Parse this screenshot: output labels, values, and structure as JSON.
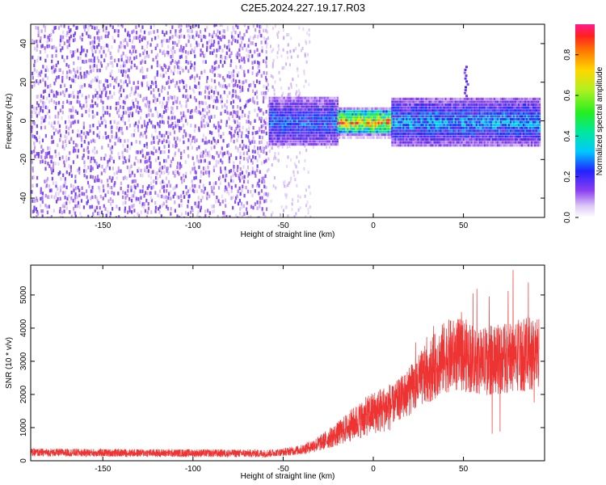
{
  "title": "C2E5.2024.227.19.17.R03",
  "chart_data": [
    {
      "type": "heatmap",
      "xlabel": "Height of straight line (km)",
      "ylabel": "Frequency (Hz)",
      "xlim": [
        -190,
        95
      ],
      "ylim": [
        -50,
        50
      ],
      "x_ticks": [
        -150,
        -100,
        -50,
        0,
        50
      ],
      "y_ticks": [
        -40,
        -20,
        0,
        20,
        40
      ],
      "colorbar": {
        "label": "Normalized spectral amplitude",
        "range": [
          0,
          0.95
        ],
        "ticks": [
          0.0,
          0.2,
          0.4,
          0.6,
          0.8
        ]
      },
      "regions": [
        {
          "x": [
            -190,
            -60
          ],
          "description_freq_band": [
            -50,
            50
          ],
          "level": 0.15
        },
        {
          "x": [
            -58,
            -20
          ],
          "description_freq_band": [
            -12,
            12
          ],
          "level": 0.3
        },
        {
          "x": [
            -20,
            10
          ],
          "description_freq_band": [
            -4,
            4
          ],
          "level": 0.85
        },
        {
          "x": [
            10,
            92
          ],
          "description_freq_band": [
            -10,
            12
          ],
          "level": 0.35
        }
      ]
    },
    {
      "type": "line",
      "xlabel": "Height of straight line (km)",
      "ylabel": "SNR (10 * v/v)",
      "xlim": [
        -190,
        95
      ],
      "ylim": [
        0,
        5900
      ],
      "x_ticks": [
        -150,
        -100,
        -50,
        0,
        50
      ],
      "y_ticks": [
        0,
        1000,
        2000,
        3000,
        4000,
        5000
      ],
      "color": "#ee3333",
      "series": [
        {
          "x": [
            -190,
            -150,
            -100,
            -60,
            -50,
            -40,
            -30,
            -20,
            -10,
            0,
            10,
            20,
            30,
            40,
            50,
            60,
            70,
            80,
            92
          ],
          "values": [
            250,
            240,
            230,
            220,
            260,
            330,
            520,
            800,
            1150,
            1450,
            1650,
            2100,
            2650,
            3150,
            3200,
            3000,
            3050,
            3200,
            3250
          ]
        }
      ]
    }
  ]
}
